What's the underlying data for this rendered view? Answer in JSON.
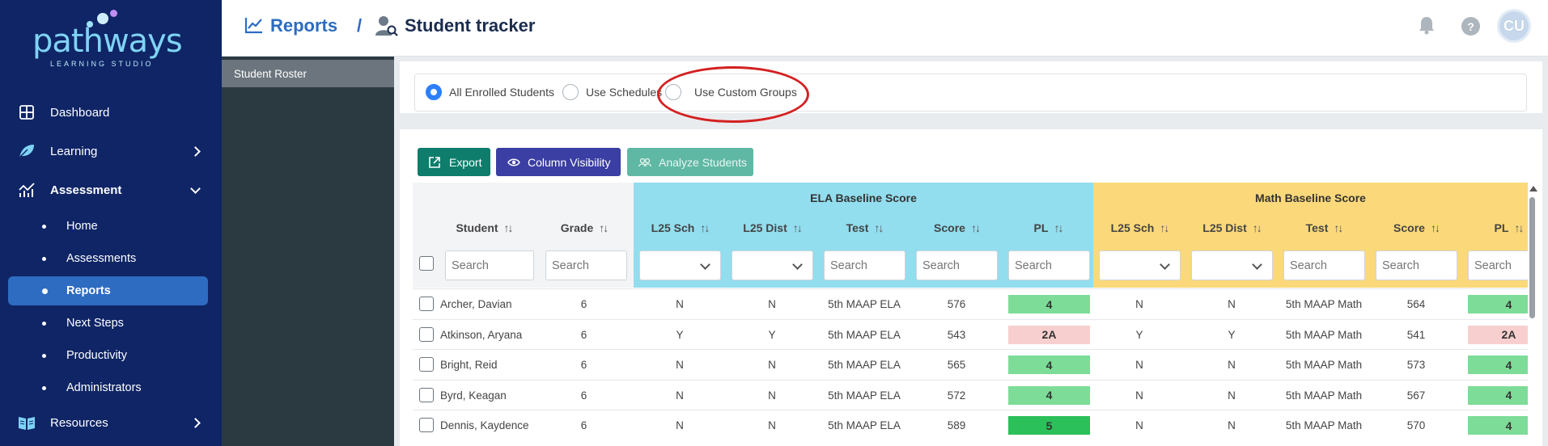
{
  "brand": {
    "logo_word": "pathways",
    "logo_sub": "LEARNING STUDIO"
  },
  "sidebar": {
    "items": [
      {
        "label": "Dashboard",
        "icon": "grid-icon"
      },
      {
        "label": "Learning",
        "icon": "leaf-icon",
        "chevron": "right"
      },
      {
        "label": "Assessment",
        "icon": "chart-icon",
        "chevron": "down",
        "expanded": true
      },
      {
        "label": "Resources",
        "icon": "book-icon",
        "chevron": "right"
      }
    ],
    "assessment_sub": [
      "Home",
      "Assessments",
      "Reports",
      "Next Steps",
      "Productivity",
      "Administrators"
    ],
    "active_sub": "Reports"
  },
  "subpanel": {
    "roster_label": "Student Roster"
  },
  "header": {
    "breadcrumb_root": "Reports",
    "breadcrumb_sep": "/",
    "page_title": "Student tracker",
    "avatar_initials": "CU",
    "help_glyph": "?"
  },
  "filter": {
    "options": [
      {
        "label": "All Enrolled Students",
        "checked": true
      },
      {
        "label": "Use Schedules",
        "checked": false
      },
      {
        "label": "Use Custom Groups",
        "checked": false
      }
    ]
  },
  "toolbar": {
    "export_label": "Export",
    "column_visibility_label": "Column Visibility",
    "analyze_label": "Analyze Students"
  },
  "table": {
    "group_headers": {
      "ela": "ELA Baseline Score",
      "math": "Math Baseline Score"
    },
    "columns": {
      "student": "Student",
      "grade": "Grade",
      "ela_l25sch": "L25 Sch",
      "ela_l25dist": "L25 Dist",
      "ela_test": "Test",
      "ela_score": "Score",
      "ela_pl": "PL",
      "math_l25sch": "L25 Sch",
      "math_l25dist": "L25 Dist",
      "math_test": "Test",
      "math_score": "Score",
      "math_pl": "PL"
    },
    "sort_glyph": "↑↓",
    "search_placeholder": "Search",
    "rows": [
      {
        "student": "Archer, Davian",
        "grade": "6",
        "ela_l25sch": "N",
        "ela_l25dist": "N",
        "ela_test": "5th MAAP ELA",
        "ela_score": "576",
        "ela_pl": "4",
        "math_l25sch": "N",
        "math_l25dist": "N",
        "math_test": "5th MAAP Math",
        "math_score": "564",
        "math_pl": "4"
      },
      {
        "student": "Atkinson, Aryana",
        "grade": "6",
        "ela_l25sch": "Y",
        "ela_l25dist": "Y",
        "ela_test": "5th MAAP ELA",
        "ela_score": "543",
        "ela_pl": "2A",
        "math_l25sch": "Y",
        "math_l25dist": "Y",
        "math_test": "5th MAAP Math",
        "math_score": "541",
        "math_pl": "2A"
      },
      {
        "student": "Bright, Reid",
        "grade": "6",
        "ela_l25sch": "N",
        "ela_l25dist": "N",
        "ela_test": "5th MAAP ELA",
        "ela_score": "565",
        "ela_pl": "4",
        "math_l25sch": "N",
        "math_l25dist": "N",
        "math_test": "5th MAAP Math",
        "math_score": "573",
        "math_pl": "4"
      },
      {
        "student": "Byrd, Keagan",
        "grade": "6",
        "ela_l25sch": "N",
        "ela_l25dist": "N",
        "ela_test": "5th MAAP ELA",
        "ela_score": "572",
        "ela_pl": "4",
        "math_l25sch": "N",
        "math_l25dist": "N",
        "math_test": "5th MAAP Math",
        "math_score": "567",
        "math_pl": "4"
      },
      {
        "student": "Dennis, Kaydence",
        "grade": "6",
        "ela_l25sch": "N",
        "ela_l25dist": "N",
        "ela_test": "5th MAAP ELA",
        "ela_score": "589",
        "ela_pl": "5",
        "math_l25sch": "N",
        "math_l25dist": "N",
        "math_test": "5th MAAP Math",
        "math_score": "570",
        "math_pl": "4"
      }
    ]
  },
  "colors": {
    "sidebar_bg": "#0f2566",
    "active_item": "#2d6cc1",
    "ela_header": "#92ddee",
    "math_header": "#fbd97a",
    "pl_4": "#7ddc98",
    "pl_5": "#2bc05a",
    "pl_2A": "#f8cfcf",
    "annotation": "#d42020"
  }
}
